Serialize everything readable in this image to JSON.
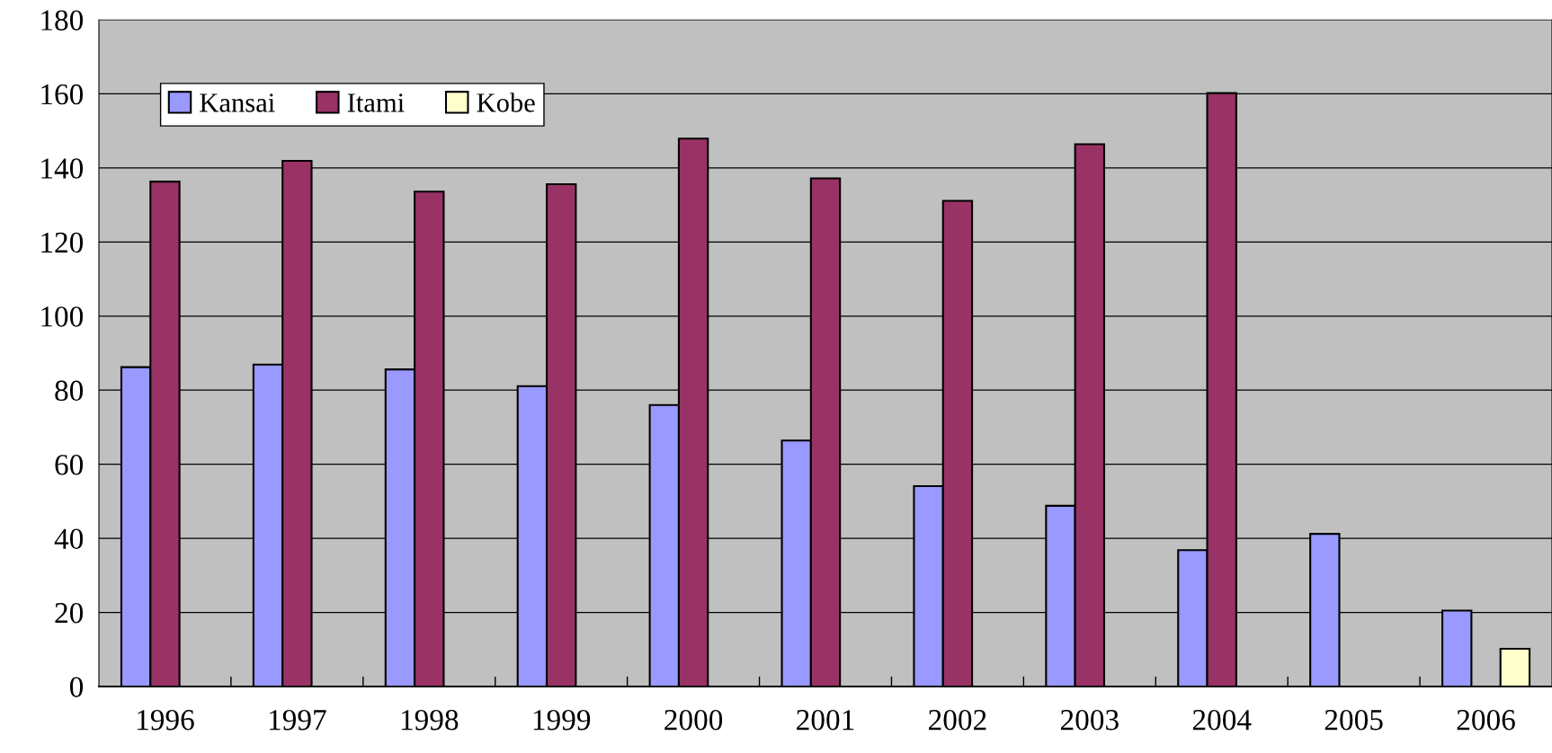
{
  "chart_data": {
    "type": "bar",
    "categories": [
      "1996",
      "1997",
      "1998",
      "1999",
      "2000",
      "2001",
      "2002",
      "2003",
      "2004",
      "2005",
      "2006"
    ],
    "series": [
      {
        "name": "Kansai",
        "color": "#9999ff",
        "values": [
          86.2,
          86.9,
          85.6,
          81.1,
          76.0,
          66.4,
          54.1,
          48.8,
          36.8,
          41.2,
          20.5
        ]
      },
      {
        "name": "Itami",
        "color": "#993366",
        "values": [
          136.3,
          141.9,
          133.6,
          135.6,
          147.9,
          137.2,
          131.1,
          146.4,
          160.2,
          null,
          null
        ]
      },
      {
        "name": "Kobe",
        "color": "#ffffcc",
        "values": [
          null,
          null,
          null,
          null,
          null,
          null,
          null,
          null,
          null,
          null,
          10.2
        ]
      }
    ],
    "ylim": [
      0,
      180
    ],
    "yticks": [
      0,
      20,
      40,
      60,
      80,
      100,
      120,
      140,
      160,
      180
    ],
    "grid": "y",
    "legend": "top left"
  }
}
